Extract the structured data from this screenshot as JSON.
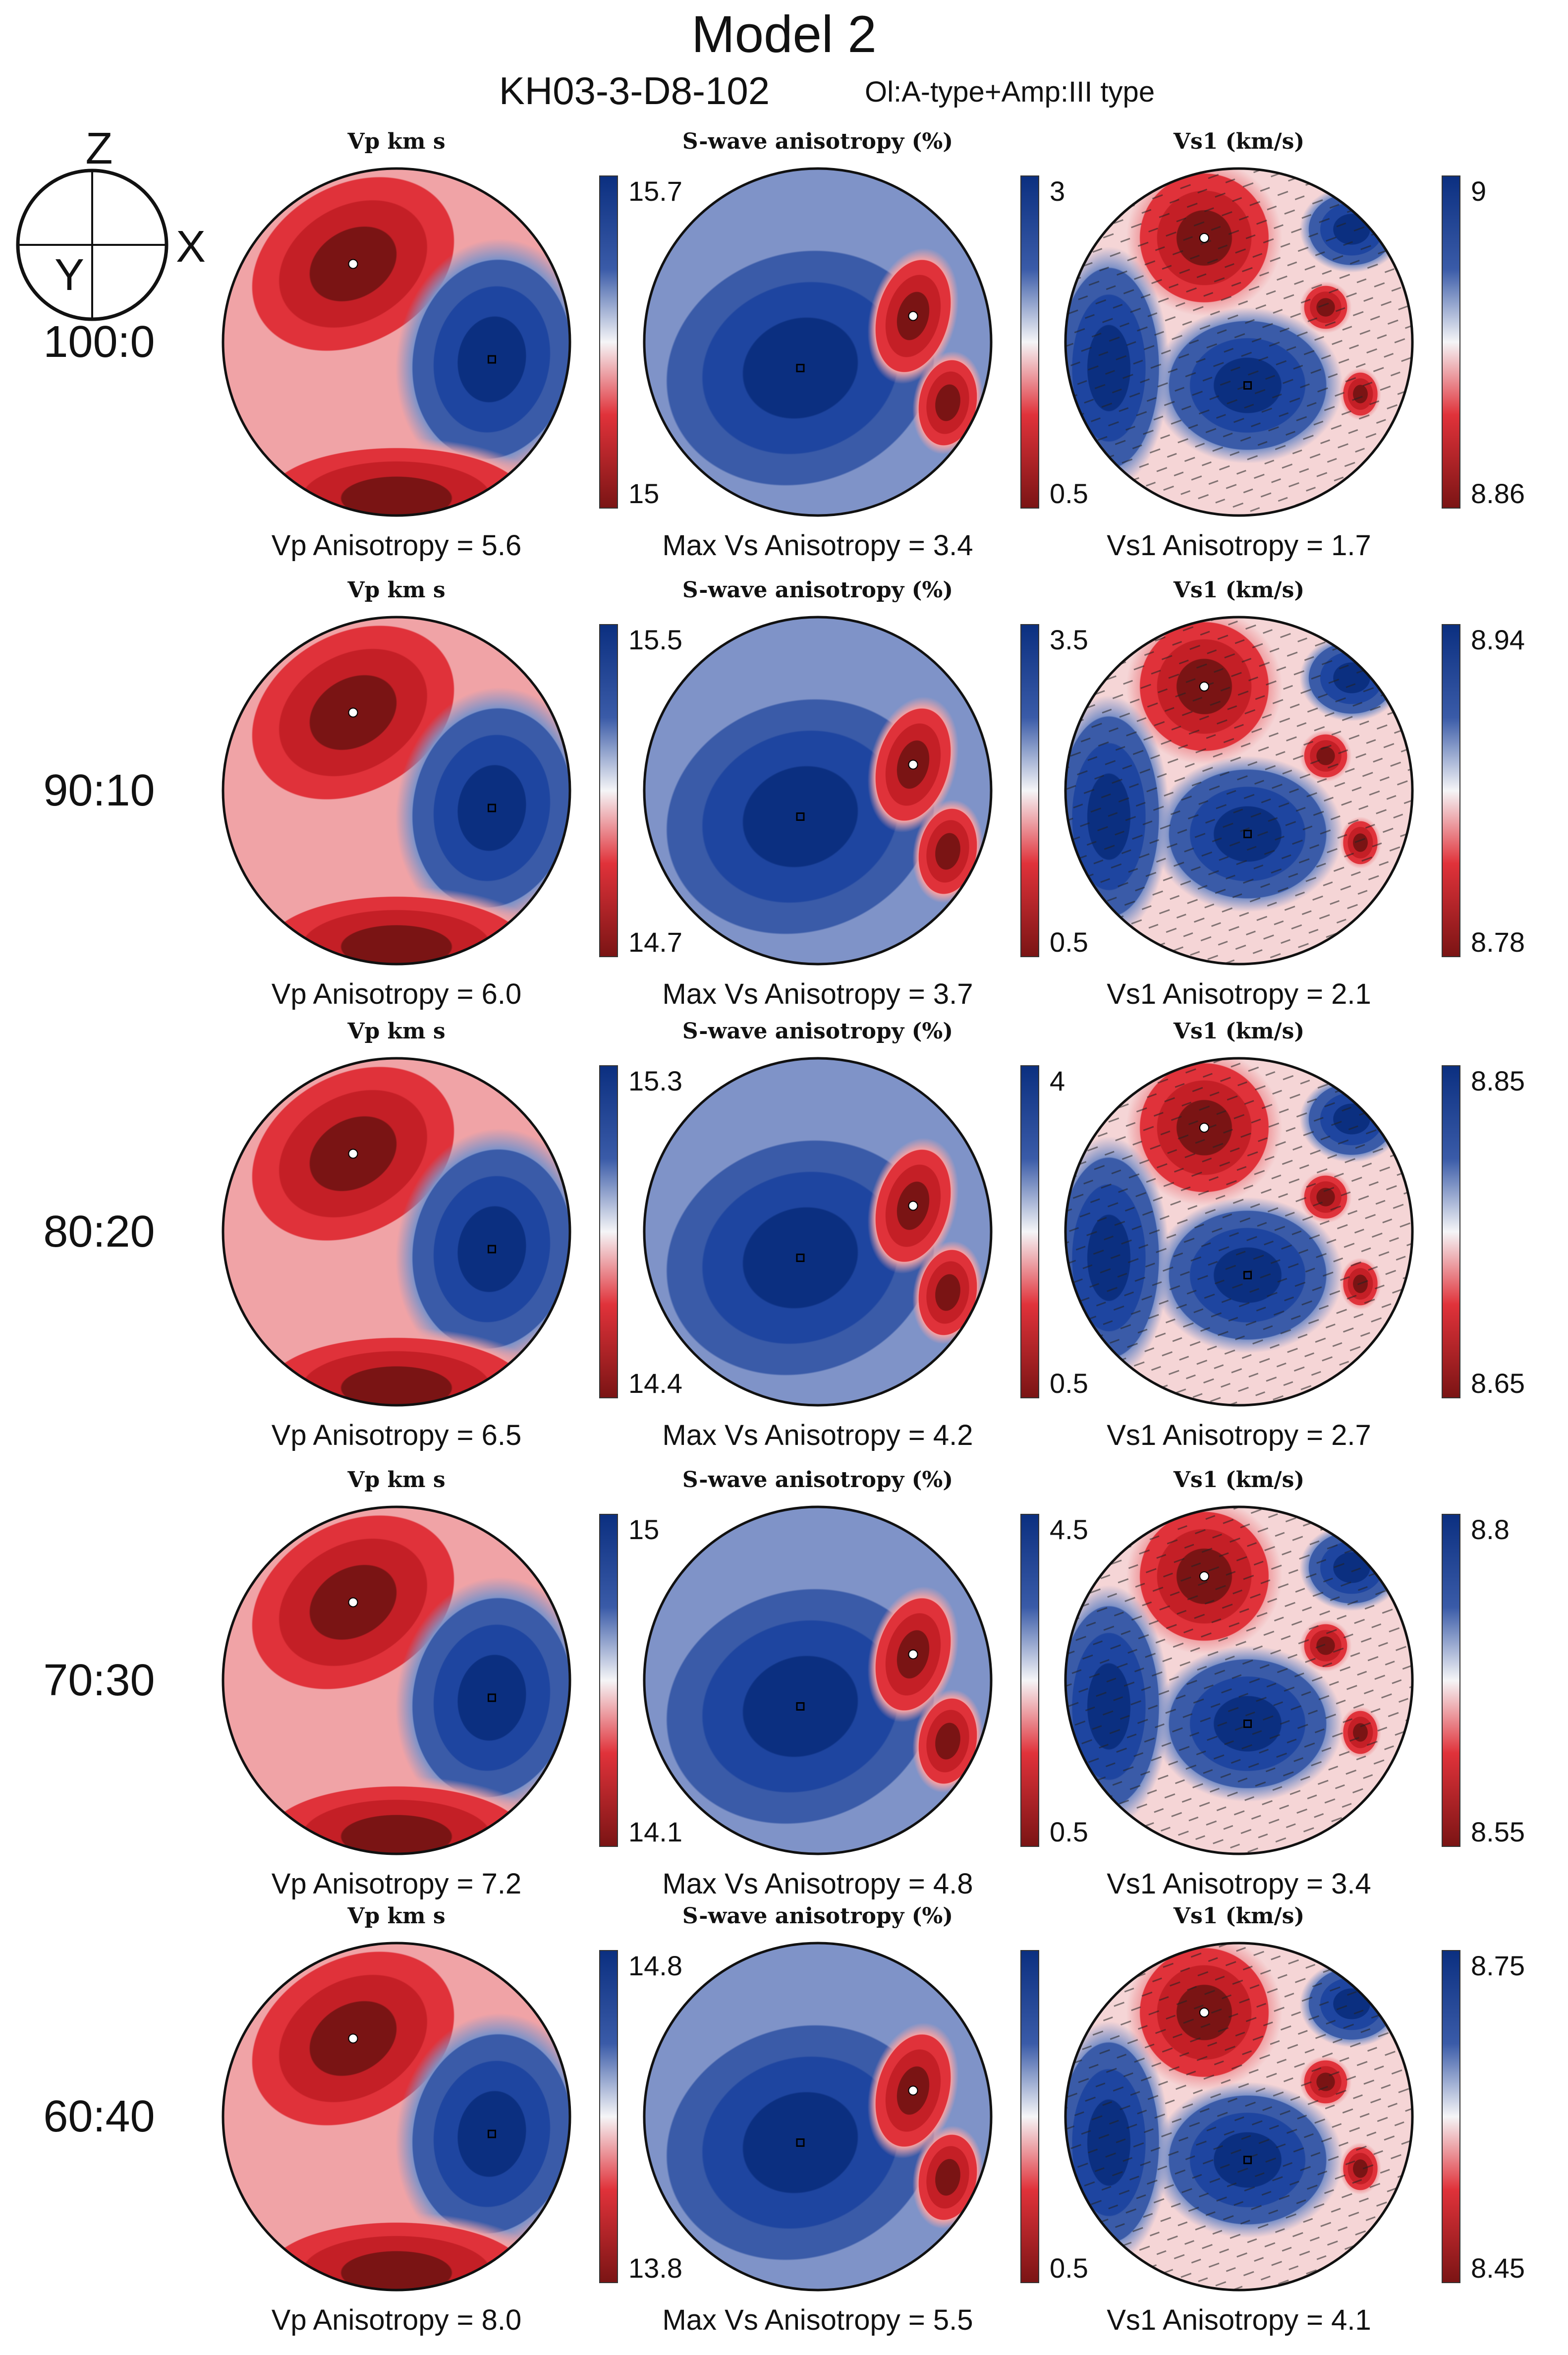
{
  "title": "Model 2",
  "sample": "KH03-3-D8-102",
  "fabric": "Ol:A-type+Amp:III type",
  "axes_glyph": {
    "z": "Z",
    "x": "X",
    "y": "Y"
  },
  "panel_titles": {
    "vp": "Vp  km  s",
    "sw": "S-wave anisotropy (%)",
    "vs1": "Vs1  (km/s)"
  },
  "colors": {
    "blue_dark": "#0b2f80",
    "blue_mid": "#3a5ba8",
    "white": "#f5f5f7",
    "red_mid": "#e0323a",
    "red_dark": "#7a1414"
  },
  "rows": [
    {
      "ratio": "100:0",
      "vp": {
        "max": "15.7",
        "min": "15",
        "caption": "Vp Anisotropy = 5.6"
      },
      "sw": {
        "max": "3",
        "min": "0.5",
        "caption": "Max Vs Anisotropy = 3.4"
      },
      "vs1": {
        "max": "9",
        "min": "8.86",
        "caption": "Vs1 Anisotropy = 1.7"
      }
    },
    {
      "ratio": "90:10",
      "vp": {
        "max": "15.5",
        "min": "14.7",
        "caption": "Vp Anisotropy = 6.0"
      },
      "sw": {
        "max": "3.5",
        "min": "0.5",
        "caption": "Max Vs Anisotropy = 3.7"
      },
      "vs1": {
        "max": "8.94",
        "min": "8.78",
        "caption": "Vs1 Anisotropy = 2.1"
      }
    },
    {
      "ratio": "80:20",
      "vp": {
        "max": "15.3",
        "min": "14.4",
        "caption": "Vp Anisotropy = 6.5"
      },
      "sw": {
        "max": "4",
        "min": "0.5",
        "caption": "Max Vs Anisotropy = 4.2"
      },
      "vs1": {
        "max": "8.85",
        "min": "8.65",
        "caption": "Vs1 Anisotropy = 2.7"
      }
    },
    {
      "ratio": "70:30",
      "vp": {
        "max": "15",
        "min": "14.1",
        "caption": "Vp Anisotropy = 7.2"
      },
      "sw": {
        "max": "4.5",
        "min": "0.5",
        "caption": "Max Vs Anisotropy = 4.8"
      },
      "vs1": {
        "max": "8.8",
        "min": "8.55",
        "caption": "Vs1 Anisotropy = 3.4"
      }
    },
    {
      "ratio": "60:40",
      "vp": {
        "max": "14.8",
        "min": "13.8",
        "caption": "Vp Anisotropy = 8.0"
      },
      "sw": {
        "max": "",
        "min": "0.5",
        "caption": "Max Vs Anisotropy = 5.5"
      },
      "vs1": {
        "max": "8.75",
        "min": "8.45",
        "caption": "Vs1 Anisotropy = 4.1"
      }
    }
  ],
  "chart_data": {
    "type": "heatmap",
    "title": "Model 2",
    "subtitle": "KH03-3-D8-102",
    "projection": "equal-area lower hemisphere pole figures",
    "series": [
      {
        "name": "Vp (km/s)",
        "ratios": [
          "100:0",
          "90:10",
          "80:20",
          "70:30",
          "60:40"
        ],
        "max": [
          15.7,
          15.5,
          15.3,
          15.0,
          14.8
        ],
        "min": [
          15.0,
          14.7,
          14.4,
          14.1,
          13.8
        ],
        "anisotropy": [
          5.6,
          6.0,
          6.5,
          7.2,
          8.0
        ]
      },
      {
        "name": "S-wave anisotropy (%)",
        "ratios": [
          "100:0",
          "90:10",
          "80:20",
          "70:30",
          "60:40"
        ],
        "max": [
          3,
          3.5,
          4,
          4.5,
          null
        ],
        "min": [
          0.5,
          0.5,
          0.5,
          0.5,
          0.5
        ],
        "anisotropy": [
          3.4,
          3.7,
          4.2,
          4.8,
          5.5
        ]
      },
      {
        "name": "Vs1 (km/s)",
        "ratios": [
          "100:0",
          "90:10",
          "80:20",
          "70:30",
          "60:40"
        ],
        "max": [
          9,
          8.94,
          8.85,
          8.8,
          8.75
        ],
        "min": [
          8.86,
          8.78,
          8.65,
          8.55,
          8.45
        ],
        "anisotropy": [
          1.7,
          2.1,
          2.7,
          3.4,
          4.1
        ]
      }
    ]
  }
}
